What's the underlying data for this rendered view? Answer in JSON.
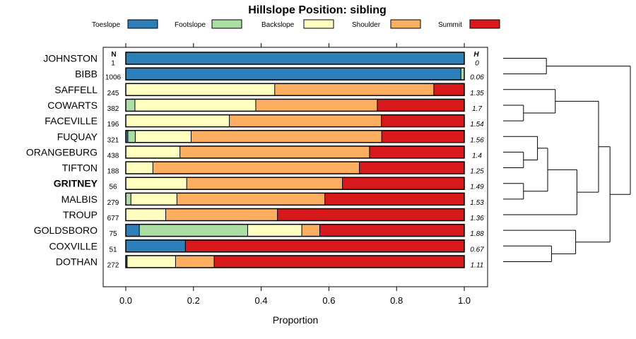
{
  "chart_data": {
    "type": "bar",
    "stacked": true,
    "orientation": "horizontal",
    "title": "Hillslope Position: sibling",
    "xlabel": "Proportion",
    "ylabel": "",
    "xlim": [
      0,
      1
    ],
    "xticks": [
      "0.0",
      "0.2",
      "0.4",
      "0.6",
      "0.8",
      "1.0"
    ],
    "n_header": "N",
    "h_header": "H",
    "legend": [
      {
        "name": "Toeslope",
        "color": "#2c7fb8"
      },
      {
        "name": "Footslope",
        "color": "#abdda4"
      },
      {
        "name": "Backslope",
        "color": "#ffffbf"
      },
      {
        "name": "Shoulder",
        "color": "#fdae61"
      },
      {
        "name": "Summit",
        "color": "#d7191c"
      }
    ],
    "series_order": [
      "Toeslope",
      "Footslope",
      "Backslope",
      "Shoulder",
      "Summit"
    ],
    "highlight": "GRITNEY",
    "rows": [
      {
        "label": "JOHNSTON",
        "n": "1",
        "h": "0",
        "values": [
          1.0,
          0,
          0,
          0,
          0
        ]
      },
      {
        "label": "BIBB",
        "n": "1006",
        "h": "0.06",
        "values": [
          0.99,
          0.01,
          0,
          0,
          0
        ]
      },
      {
        "label": "SAFFELL",
        "n": "245",
        "h": "1.35",
        "values": [
          0,
          0,
          0.44,
          0.47,
          0.09
        ]
      },
      {
        "label": "COWARTS",
        "n": "382",
        "h": "1.7",
        "values": [
          0,
          0.027,
          0.357,
          0.359,
          0.257
        ]
      },
      {
        "label": "FACEVILLE",
        "n": "196",
        "h": "1.54",
        "values": [
          0,
          0,
          0.306,
          0.449,
          0.245
        ]
      },
      {
        "label": "FUQUAY",
        "n": "321",
        "h": "1.56",
        "values": [
          0.006,
          0.022,
          0.165,
          0.563,
          0.244
        ]
      },
      {
        "label": "ORANGEBURG",
        "n": "438",
        "h": "1.4",
        "values": [
          0,
          0,
          0.16,
          0.56,
          0.28
        ]
      },
      {
        "label": "TIFTON",
        "n": "188",
        "h": "1.25",
        "values": [
          0,
          0,
          0.08,
          0.61,
          0.31
        ]
      },
      {
        "label": "GRITNEY",
        "n": "56",
        "h": "1.49",
        "values": [
          0,
          0,
          0.18,
          0.46,
          0.36
        ]
      },
      {
        "label": "MALBIS",
        "n": "279",
        "h": "1.53",
        "values": [
          0,
          0.015,
          0.136,
          0.437,
          0.412
        ]
      },
      {
        "label": "TROUP",
        "n": "677",
        "h": "1.36",
        "values": [
          0,
          0,
          0.118,
          0.33,
          0.552
        ]
      },
      {
        "label": "GOLDSBORO",
        "n": "75",
        "h": "1.88",
        "values": [
          0.04,
          0.32,
          0.16,
          0.053,
          0.427
        ]
      },
      {
        "label": "COXVILLE",
        "n": "51",
        "h": "0.67",
        "values": [
          0.176,
          0,
          0,
          0,
          0.824
        ]
      },
      {
        "label": "DOTHAN",
        "n": "272",
        "h": "1.11",
        "values": [
          0.004,
          0,
          0.143,
          0.114,
          0.739
        ]
      }
    ],
    "dendrogram_merges": [
      [
        0,
        1,
        0.34
      ],
      [
        3,
        4,
        0.16
      ],
      [
        2,
        "m1",
        0.41
      ],
      [
        6,
        7,
        0.16
      ],
      [
        8,
        9,
        0.16
      ],
      [
        5,
        "m3",
        0.27
      ],
      [
        "m5",
        "m4",
        0.35
      ],
      [
        "m6",
        10,
        0.58
      ],
      [
        "m2",
        "m7",
        0.75
      ],
      [
        12,
        13,
        0.38
      ],
      [
        11,
        "m9",
        0.57
      ],
      [
        "m8",
        "m10",
        0.84
      ],
      [
        "m0",
        "m11",
        1.0
      ]
    ]
  }
}
